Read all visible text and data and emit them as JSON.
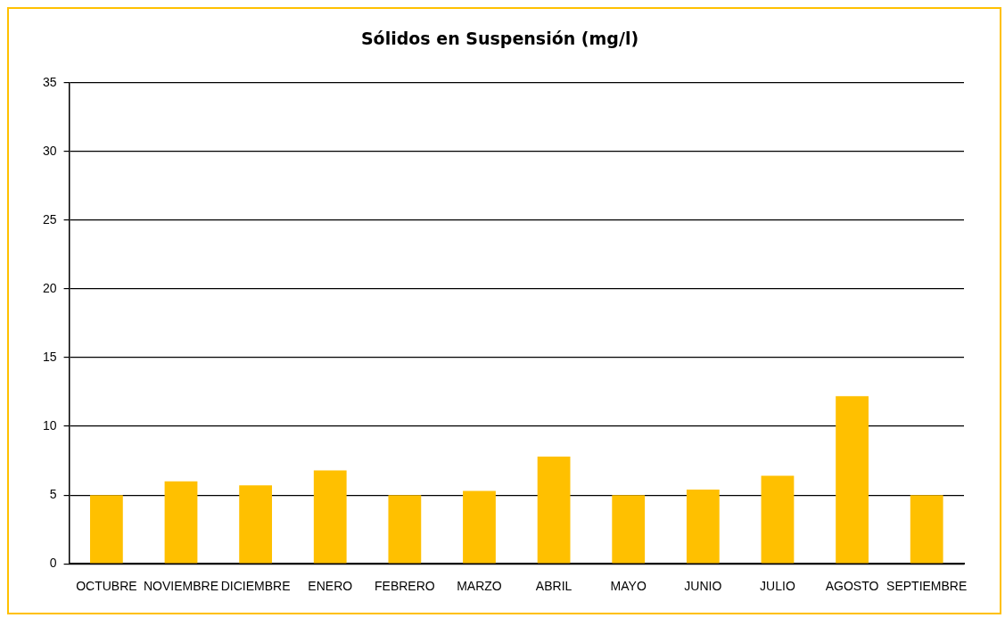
{
  "chart_data": {
    "type": "bar",
    "title": "Sólidos en Suspensión (mg/l)",
    "categories": [
      "OCTUBRE",
      "NOVIEMBRE",
      "DICIEMBRE",
      "ENERO",
      "FEBRERO",
      "MARZO",
      "ABRIL",
      "MAYO",
      "JUNIO",
      "JULIO",
      "AGOSTO",
      "SEPTIEMBRE"
    ],
    "values": [
      5.0,
      6.0,
      5.7,
      6.8,
      5.0,
      5.3,
      7.8,
      5.0,
      5.4,
      6.4,
      12.2,
      5.0
    ],
    "color": "#ffc000",
    "ylim": [
      0,
      35
    ],
    "yticks": [
      0,
      5,
      10,
      15,
      20,
      25,
      30,
      35
    ],
    "grid": "y"
  }
}
